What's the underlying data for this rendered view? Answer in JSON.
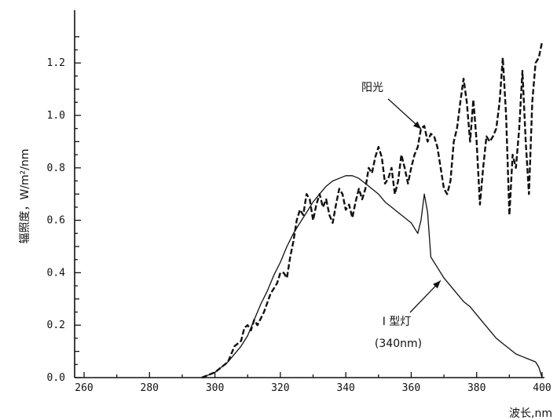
{
  "chart_data": {
    "type": "line",
    "title": "",
    "ylabel": "辐照度，W/m²/nm",
    "xlabel": "波长,nm",
    "xlim": [
      260,
      400
    ],
    "ylim": [
      0,
      1.3
    ],
    "x_ticks": [
      "260",
      "280",
      "300",
      "320",
      "340",
      "360",
      "380",
      "400"
    ],
    "y_ticks": [
      "0.0",
      "0.2",
      "0.4",
      "0.6",
      "0.8",
      "1.0",
      "1.2"
    ],
    "grid": false,
    "series": [
      {
        "name": "阳光",
        "style": "dashed",
        "points": [
          [
            296,
            0.0
          ],
          [
            300,
            0.02
          ],
          [
            304,
            0.06
          ],
          [
            306,
            0.12
          ],
          [
            308,
            0.14
          ],
          [
            309,
            0.19
          ],
          [
            310,
            0.2
          ],
          [
            311,
            0.18
          ],
          [
            312,
            0.22
          ],
          [
            313,
            0.2
          ],
          [
            315,
            0.25
          ],
          [
            317,
            0.32
          ],
          [
            319,
            0.36
          ],
          [
            320,
            0.4
          ],
          [
            321,
            0.4
          ],
          [
            322,
            0.38
          ],
          [
            323,
            0.46
          ],
          [
            324,
            0.52
          ],
          [
            325,
            0.6
          ],
          [
            326,
            0.64
          ],
          [
            327,
            0.62
          ],
          [
            328,
            0.7
          ],
          [
            329,
            0.68
          ],
          [
            330,
            0.6
          ],
          [
            331,
            0.66
          ],
          [
            332,
            0.7
          ],
          [
            333,
            0.65
          ],
          [
            334,
            0.68
          ],
          [
            335,
            0.62
          ],
          [
            336,
            0.59
          ],
          [
            337,
            0.66
          ],
          [
            338,
            0.72
          ],
          [
            339,
            0.7
          ],
          [
            340,
            0.64
          ],
          [
            341,
            0.66
          ],
          [
            342,
            0.61
          ],
          [
            343,
            0.67
          ],
          [
            344,
            0.72
          ],
          [
            345,
            0.68
          ],
          [
            346,
            0.72
          ],
          [
            347,
            0.8
          ],
          [
            348,
            0.78
          ],
          [
            349,
            0.84
          ],
          [
            350,
            0.88
          ],
          [
            351,
            0.84
          ],
          [
            352,
            0.74
          ],
          [
            353,
            0.76
          ],
          [
            354,
            0.8
          ],
          [
            355,
            0.7
          ],
          [
            356,
            0.75
          ],
          [
            357,
            0.85
          ],
          [
            358,
            0.8
          ],
          [
            359,
            0.74
          ],
          [
            360,
            0.8
          ],
          [
            361,
            0.85
          ],
          [
            362,
            0.88
          ],
          [
            363,
            0.95
          ],
          [
            364,
            0.96
          ],
          [
            365,
            0.9
          ],
          [
            366,
            0.93
          ],
          [
            367,
            0.92
          ],
          [
            368,
            0.88
          ],
          [
            369,
            0.8
          ],
          [
            370,
            0.72
          ],
          [
            371,
            0.7
          ],
          [
            372,
            0.75
          ],
          [
            373,
            0.9
          ],
          [
            374,
            0.95
          ],
          [
            375,
            1.05
          ],
          [
            376,
            1.14
          ],
          [
            377,
            1.05
          ],
          [
            378,
            0.9
          ],
          [
            379,
            1.06
          ],
          [
            380,
            0.9
          ],
          [
            381,
            0.66
          ],
          [
            382,
            0.8
          ],
          [
            383,
            0.92
          ],
          [
            384,
            0.9
          ],
          [
            385,
            0.92
          ],
          [
            386,
            0.95
          ],
          [
            387,
            1.05
          ],
          [
            388,
            1.22
          ],
          [
            389,
            1.0
          ],
          [
            390,
            0.62
          ],
          [
            391,
            0.85
          ],
          [
            392,
            0.8
          ],
          [
            393,
            0.95
          ],
          [
            394,
            1.17
          ],
          [
            395,
            0.9
          ],
          [
            396,
            0.7
          ],
          [
            397,
            1.05
          ],
          [
            398,
            1.2
          ],
          [
            399,
            1.22
          ],
          [
            400,
            1.28
          ]
        ]
      },
      {
        "name": "I 型灯",
        "style": "solid",
        "points": [
          [
            296,
            0.0
          ],
          [
            298,
            0.01
          ],
          [
            300,
            0.02
          ],
          [
            302,
            0.04
          ],
          [
            304,
            0.06
          ],
          [
            306,
            0.09
          ],
          [
            308,
            0.12
          ],
          [
            310,
            0.16
          ],
          [
            312,
            0.22
          ],
          [
            314,
            0.28
          ],
          [
            316,
            0.33
          ],
          [
            318,
            0.39
          ],
          [
            320,
            0.44
          ],
          [
            322,
            0.5
          ],
          [
            324,
            0.55
          ],
          [
            326,
            0.59
          ],
          [
            328,
            0.63
          ],
          [
            330,
            0.67
          ],
          [
            332,
            0.7
          ],
          [
            334,
            0.73
          ],
          [
            336,
            0.75
          ],
          [
            338,
            0.76
          ],
          [
            340,
            0.77
          ],
          [
            342,
            0.77
          ],
          [
            344,
            0.76
          ],
          [
            346,
            0.74
          ],
          [
            348,
            0.72
          ],
          [
            350,
            0.7
          ],
          [
            352,
            0.67
          ],
          [
            354,
            0.65
          ],
          [
            356,
            0.63
          ],
          [
            358,
            0.61
          ],
          [
            360,
            0.59
          ],
          [
            362,
            0.55
          ],
          [
            363,
            0.6
          ],
          [
            364,
            0.7
          ],
          [
            365,
            0.63
          ],
          [
            366,
            0.46
          ],
          [
            368,
            0.42
          ],
          [
            370,
            0.38
          ],
          [
            372,
            0.35
          ],
          [
            374,
            0.32
          ],
          [
            376,
            0.29
          ],
          [
            378,
            0.27
          ],
          [
            380,
            0.24
          ],
          [
            382,
            0.21
          ],
          [
            384,
            0.18
          ],
          [
            386,
            0.15
          ],
          [
            388,
            0.13
          ],
          [
            390,
            0.11
          ],
          [
            392,
            0.09
          ],
          [
            394,
            0.08
          ],
          [
            396,
            0.07
          ],
          [
            398,
            0.06
          ],
          [
            399,
            0.04
          ],
          [
            400,
            0.0
          ]
        ]
      }
    ],
    "annotations": [
      {
        "text": "阳光",
        "points_to": [
          364,
          0.96
        ]
      },
      {
        "text": "I 型灯",
        "points_to": [
          369,
          0.37
        ]
      },
      {
        "text": "(340nm)"
      }
    ]
  }
}
